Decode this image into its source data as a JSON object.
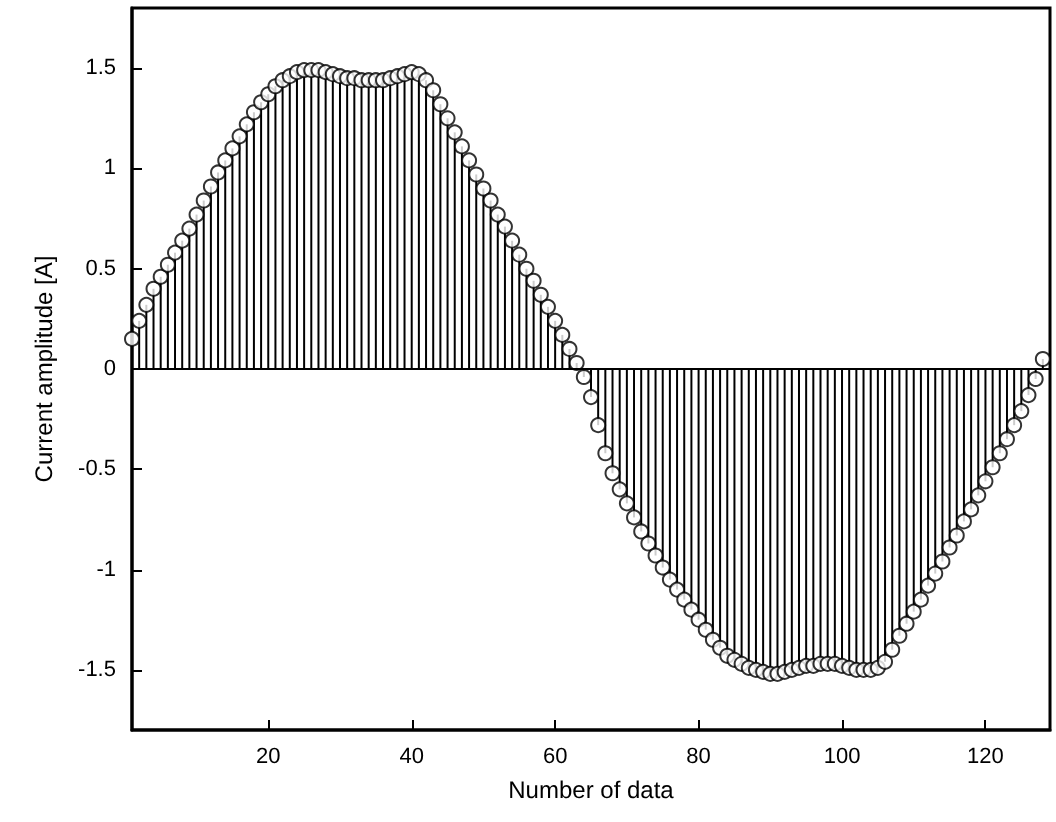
{
  "chart_data": {
    "type": "lollipop",
    "xlabel": "Number of data",
    "ylabel": "Current amplitude [A]",
    "x": [
      1,
      2,
      3,
      4,
      5,
      6,
      7,
      8,
      9,
      10,
      11,
      12,
      13,
      14,
      15,
      16,
      17,
      18,
      19,
      20,
      21,
      22,
      23,
      24,
      25,
      26,
      27,
      28,
      29,
      30,
      31,
      32,
      33,
      34,
      35,
      36,
      37,
      38,
      39,
      40,
      41,
      42,
      43,
      44,
      45,
      46,
      47,
      48,
      49,
      50,
      51,
      52,
      53,
      54,
      55,
      56,
      57,
      58,
      59,
      60,
      61,
      62,
      63,
      64,
      65,
      66,
      67,
      68,
      69,
      70,
      71,
      72,
      73,
      74,
      75,
      76,
      77,
      78,
      79,
      80,
      81,
      82,
      83,
      84,
      85,
      86,
      87,
      88,
      89,
      90,
      91,
      92,
      93,
      94,
      95,
      96,
      97,
      98,
      99,
      100,
      101,
      102,
      103,
      104,
      105,
      106,
      107,
      108,
      109,
      110,
      111,
      112,
      113,
      114,
      115,
      116,
      117,
      118,
      119,
      120,
      121,
      122,
      123,
      124,
      125,
      126,
      127,
      128
    ],
    "values": [
      0.15,
      0.24,
      0.32,
      0.4,
      0.46,
      0.52,
      0.58,
      0.64,
      0.7,
      0.77,
      0.84,
      0.91,
      0.98,
      1.04,
      1.1,
      1.16,
      1.22,
      1.28,
      1.33,
      1.37,
      1.41,
      1.44,
      1.46,
      1.48,
      1.49,
      1.49,
      1.49,
      1.48,
      1.47,
      1.46,
      1.45,
      1.45,
      1.44,
      1.44,
      1.44,
      1.44,
      1.45,
      1.46,
      1.47,
      1.48,
      1.47,
      1.44,
      1.39,
      1.32,
      1.25,
      1.18,
      1.11,
      1.04,
      0.97,
      0.9,
      0.84,
      0.77,
      0.71,
      0.64,
      0.57,
      0.5,
      0.44,
      0.37,
      0.31,
      0.24,
      0.17,
      0.1,
      0.03,
      -0.04,
      -0.14,
      -0.28,
      -0.42,
      -0.52,
      -0.6,
      -0.67,
      -0.74,
      -0.81,
      -0.87,
      -0.93,
      -0.99,
      -1.05,
      -1.1,
      -1.15,
      -1.2,
      -1.25,
      -1.3,
      -1.35,
      -1.39,
      -1.43,
      -1.45,
      -1.47,
      -1.49,
      -1.5,
      -1.51,
      -1.52,
      -1.52,
      -1.51,
      -1.5,
      -1.49,
      -1.48,
      -1.48,
      -1.47,
      -1.47,
      -1.47,
      -1.48,
      -1.49,
      -1.5,
      -1.5,
      -1.5,
      -1.49,
      -1.46,
      -1.4,
      -1.33,
      -1.27,
      -1.21,
      -1.15,
      -1.08,
      -1.02,
      -0.96,
      -0.89,
      -0.83,
      -0.76,
      -0.7,
      -0.63,
      -0.56,
      -0.49,
      -0.42,
      -0.35,
      -0.28,
      -0.21,
      -0.13,
      -0.05,
      0.05
    ],
    "color": "#000000",
    "marker": "circle",
    "xlim": [
      1,
      129
    ],
    "xticks": [
      20,
      40,
      60,
      80,
      100,
      120
    ],
    "ylim": [
      -1.8,
      1.8
    ],
    "yticks": [
      -1.5,
      -1,
      -0.5,
      0,
      0.5,
      1,
      1.5
    ],
    "ref_lines": [
      {
        "axis": "y",
        "value": 0,
        "color": "#000000"
      }
    ],
    "grid": false
  }
}
